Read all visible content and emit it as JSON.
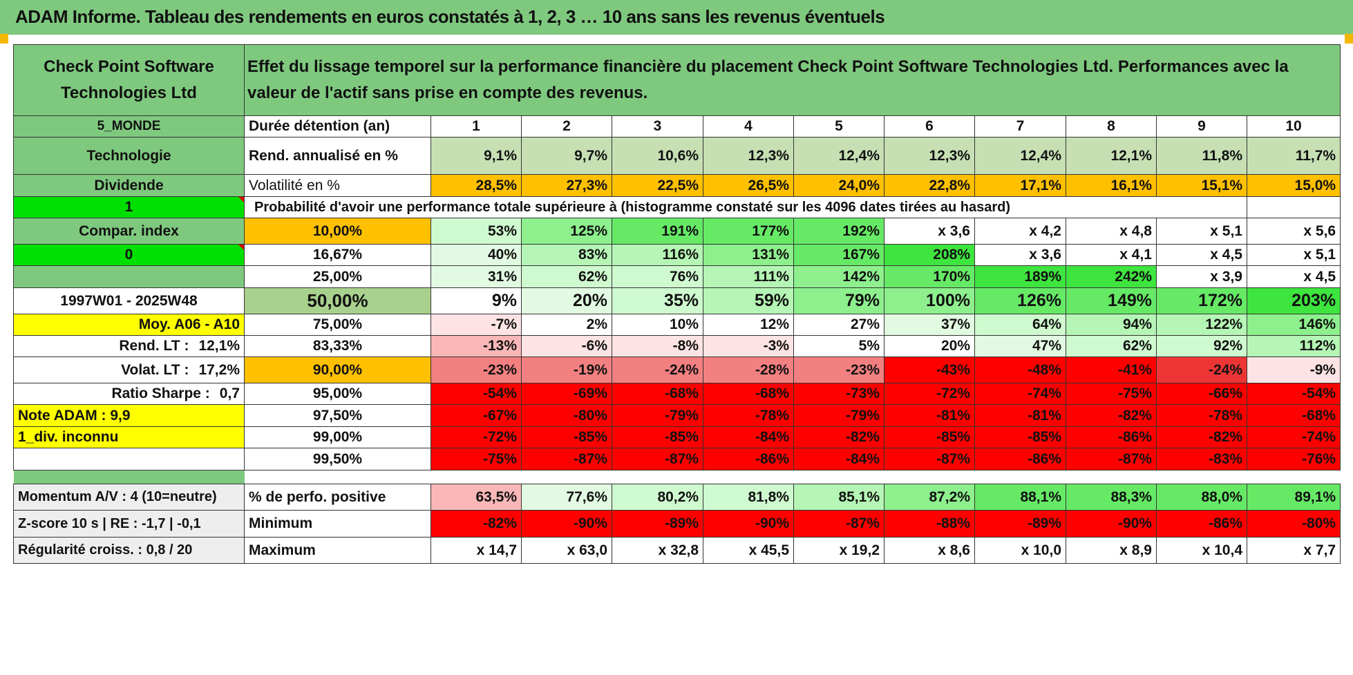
{
  "title": "ADAM Informe. Tableau des rendements en euros constatés à 1, 2, 3 … 10 ans sans les revenus éventuels",
  "header": {
    "company": "Check Point Software Technologies Ltd",
    "description": "Effet du lissage temporel sur la performance financière du placement Check Point Software Technologies Ltd. Performances avec la valeur de l'actif sans prise en compte des revenus."
  },
  "left": {
    "zone": "5_MONDE",
    "sector": "Technologie",
    "dividend_label": "Dividende",
    "dividend_value": "1",
    "compar_label": "Compar. index",
    "compar_value": "0",
    "period": "1997W01 - 2025W48",
    "moy": "Moy. A06 - A10",
    "rend_lt_label": "Rend. LT :",
    "rend_lt_value": "12,1%",
    "volat_lt_label": "Volat. LT :",
    "volat_lt_value": "17,2%",
    "sharpe_label": "Ratio Sharpe :",
    "sharpe_value": "0,7",
    "note": "Note ADAM : 9,9",
    "div_info": "1_div. inconnu"
  },
  "rows": {
    "duree_label": "Durée détention (an)",
    "years": [
      "1",
      "2",
      "3",
      "4",
      "5",
      "6",
      "7",
      "8",
      "9",
      "10"
    ],
    "rend_label": "Rend. annualisé en %",
    "rend": [
      "9,1%",
      "9,7%",
      "10,6%",
      "12,3%",
      "12,4%",
      "12,3%",
      "12,4%",
      "12,1%",
      "11,8%",
      "11,7%"
    ],
    "vol_label": "Volatilité en %",
    "vol": [
      "28,5%",
      "27,3%",
      "22,5%",
      "26,5%",
      "24,0%",
      "22,8%",
      "17,1%",
      "16,1%",
      "15,1%",
      "15,0%"
    ],
    "proba_label": "Probabilité d'avoir une performance totale supérieure à (histogramme constaté sur les 4096 dates tirées au hasard)"
  },
  "quantiles": [
    {
      "p": "10,00%",
      "v": [
        "53%",
        "125%",
        "191%",
        "177%",
        "192%",
        "x 3,6",
        "x 4,2",
        "x 4,8",
        "x 5,1",
        "x 5,6"
      ]
    },
    {
      "p": "16,67%",
      "v": [
        "40%",
        "83%",
        "116%",
        "131%",
        "167%",
        "208%",
        "x 3,6",
        "x 4,1",
        "x 4,5",
        "x 5,1"
      ]
    },
    {
      "p": "25,00%",
      "v": [
        "31%",
        "62%",
        "76%",
        "111%",
        "142%",
        "170%",
        "189%",
        "242%",
        "x 3,9",
        "x 4,5"
      ]
    },
    {
      "p": "50,00%",
      "v": [
        "9%",
        "20%",
        "35%",
        "59%",
        "79%",
        "100%",
        "126%",
        "149%",
        "172%",
        "203%"
      ]
    },
    {
      "p": "75,00%",
      "v": [
        "-7%",
        "2%",
        "10%",
        "12%",
        "27%",
        "37%",
        "64%",
        "94%",
        "122%",
        "146%"
      ]
    },
    {
      "p": "83,33%",
      "v": [
        "-13%",
        "-6%",
        "-8%",
        "-3%",
        "5%",
        "20%",
        "47%",
        "62%",
        "92%",
        "112%"
      ]
    },
    {
      "p": "90,00%",
      "v": [
        "-23%",
        "-19%",
        "-24%",
        "-28%",
        "-23%",
        "-43%",
        "-48%",
        "-41%",
        "-24%",
        "-9%"
      ]
    },
    {
      "p": "95,00%",
      "v": [
        "-54%",
        "-69%",
        "-68%",
        "-68%",
        "-73%",
        "-72%",
        "-74%",
        "-75%",
        "-66%",
        "-54%"
      ]
    },
    {
      "p": "97,50%",
      "v": [
        "-67%",
        "-80%",
        "-79%",
        "-78%",
        "-79%",
        "-81%",
        "-81%",
        "-82%",
        "-78%",
        "-68%"
      ]
    },
    {
      "p": "99,00%",
      "v": [
        "-72%",
        "-85%",
        "-85%",
        "-84%",
        "-82%",
        "-85%",
        "-85%",
        "-86%",
        "-82%",
        "-74%"
      ]
    },
    {
      "p": "99,50%",
      "v": [
        "-75%",
        "-87%",
        "-87%",
        "-86%",
        "-84%",
        "-87%",
        "-86%",
        "-87%",
        "-83%",
        "-76%"
      ]
    }
  ],
  "bottom": {
    "momentum": "Momentum A/V : 4 (10=neutre)",
    "zscore": "Z-score 10 s | RE : -1,7 | -0,1",
    "regularite": "Régularité croiss. : 0,8 / 20",
    "pos_label": "% de perfo. positive",
    "pos": [
      "63,5%",
      "77,6%",
      "80,2%",
      "81,8%",
      "85,1%",
      "87,2%",
      "88,1%",
      "88,3%",
      "88,0%",
      "89,1%"
    ],
    "min_label": "Minimum",
    "min": [
      "-82%",
      "-90%",
      "-89%",
      "-90%",
      "-87%",
      "-88%",
      "-89%",
      "-90%",
      "-86%",
      "-80%"
    ],
    "max_label": "Maximum",
    "max": [
      "x 14,7",
      "x 63,0",
      "x 32,8",
      "x 45,5",
      "x 19,2",
      "x 8,6",
      "x 10,0",
      "x 8,9",
      "x 10,4",
      "x 7,7"
    ]
  }
}
